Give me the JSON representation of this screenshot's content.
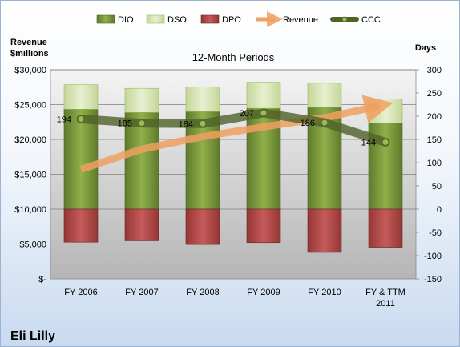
{
  "chart_data": {
    "type": "bar",
    "title": "12-Month Periods",
    "company": "Eli Lilly",
    "y_left_label_lines": [
      "Revenue",
      "$millions"
    ],
    "y_right_label": "Days",
    "categories": [
      "FY 2006",
      "FY 2007",
      "FY 2008",
      "FY 2009",
      "FY 2010",
      "FY & TTM 2011"
    ],
    "series": [
      {
        "name": "DIO",
        "type": "bar",
        "axis": "days",
        "color": "#76933c",
        "values": [
          215,
          208,
          210,
          217,
          219,
          185
        ]
      },
      {
        "name": "DSO",
        "type": "bar",
        "axis": "days",
        "color": "#d7e4bc",
        "values": [
          53,
          52,
          53,
          56,
          52,
          52
        ]
      },
      {
        "name": "DPO",
        "type": "bar",
        "axis": "days",
        "color": "#b84d4d",
        "values": [
          -71,
          -68,
          -76,
          -72,
          -93,
          -82
        ]
      },
      {
        "name": "Revenue",
        "type": "line",
        "axis": "revenue",
        "color": "#f0a060",
        "values": [
          15700,
          18600,
          20400,
          21800,
          23100,
          24800
        ]
      },
      {
        "name": "CCC",
        "type": "line",
        "axis": "days",
        "color": "#4f6228",
        "values": [
          194,
          185,
          184,
          207,
          186,
          144
        ],
        "labels": [
          "194",
          "185",
          "184",
          "207",
          "186",
          "144"
        ]
      }
    ],
    "y_left": {
      "min": 0,
      "max": 30000,
      "step": 5000,
      "ticks": [
        "$-",
        "$5,000",
        "$10,000",
        "$15,000",
        "$20,000",
        "$25,000",
        "$30,000"
      ]
    },
    "y_right": {
      "min": -150,
      "max": 300,
      "step": 50,
      "ticks": [
        "-150",
        "-100",
        "-50",
        "0",
        "50",
        "100",
        "150",
        "200",
        "250",
        "300"
      ]
    },
    "grid": true,
    "legend_position": "top"
  }
}
